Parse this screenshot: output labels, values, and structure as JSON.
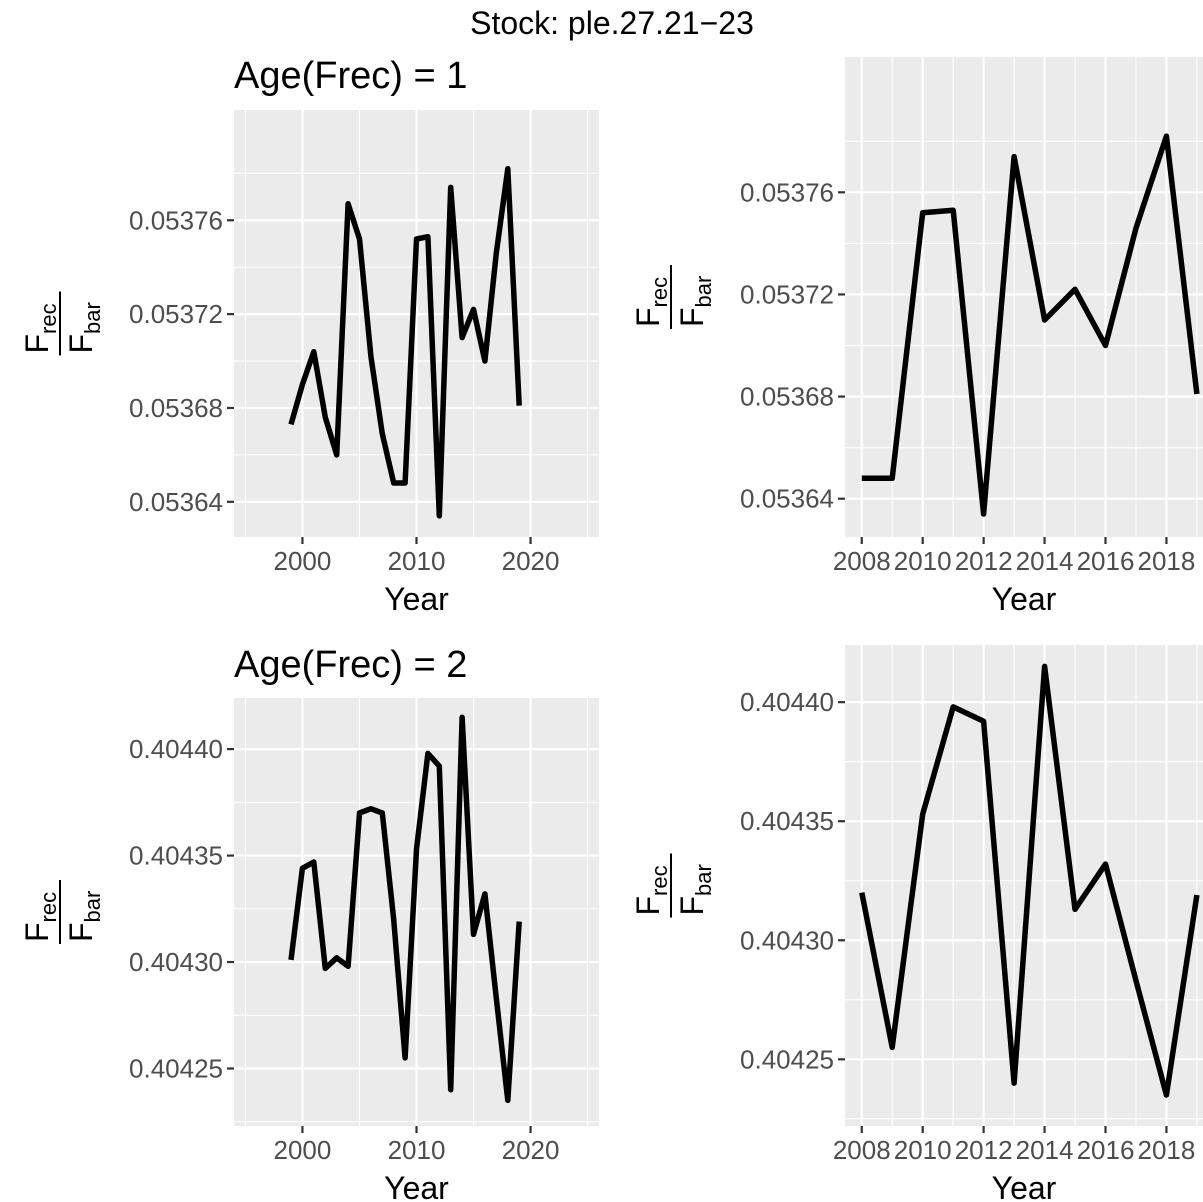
{
  "figure": {
    "title": "Stock: ple.27.21−23"
  },
  "chart_data": [
    {
      "type": "line",
      "title": "Age(Frec) = 1",
      "xlabel": "Year",
      "ylabel": {
        "num_main": "F",
        "num_sub": "rec",
        "den_main": "F",
        "den_sub": "bar"
      },
      "xlim": [
        1994,
        2026
      ],
      "ylim": [
        0.053625,
        0.053807
      ],
      "x_ticks": [
        2000,
        2010,
        2020
      ],
      "x_tick_labels": [
        "2000",
        "2010",
        "2020"
      ],
      "y_ticks": [
        0.05364,
        0.05368,
        0.05372,
        0.05376
      ],
      "y_tick_labels": [
        "0.05364",
        "0.05368",
        "0.05372",
        "0.05376"
      ],
      "grid": true,
      "x": [
        1999,
        2000,
        2001,
        2002,
        2003,
        2004,
        2005,
        2006,
        2007,
        2008,
        2009,
        2010,
        2011,
        2012,
        2013,
        2014,
        2015,
        2016,
        2017,
        2018,
        2019
      ],
      "y": [
        0.053673,
        0.05369,
        0.053704,
        0.053676,
        0.05366,
        0.053767,
        0.053752,
        0.053702,
        0.053669,
        0.053648,
        0.053648,
        0.053752,
        0.053753,
        0.053634,
        0.053774,
        0.05371,
        0.053722,
        0.0537,
        0.053746,
        0.053782,
        0.053681
      ]
    },
    {
      "type": "line",
      "title": "",
      "xlabel": "Year",
      "ylabel": {
        "num_main": "F",
        "num_sub": "rec",
        "den_main": "F",
        "den_sub": "bar"
      },
      "xlim": [
        2007.45,
        2019.2
      ],
      "ylim": [
        0.053625,
        0.053813
      ],
      "x_ticks": [
        2008,
        2010,
        2012,
        2014,
        2016,
        2018
      ],
      "x_tick_labels": [
        "2008",
        "2010",
        "2012",
        "2014",
        "2016",
        "2018"
      ],
      "y_ticks": [
        0.05364,
        0.05368,
        0.05372,
        0.05376
      ],
      "y_tick_labels": [
        "0.05364",
        "0.05368",
        "0.05372",
        "0.05376"
      ],
      "grid": true,
      "x": [
        2008,
        2009,
        2010,
        2011,
        2012,
        2013,
        2014,
        2015,
        2016,
        2017,
        2018,
        2019
      ],
      "y": [
        0.053648,
        0.053648,
        0.053752,
        0.053753,
        0.053634,
        0.053774,
        0.05371,
        0.053722,
        0.0537,
        0.053746,
        0.053782,
        0.053681
      ]
    },
    {
      "type": "line",
      "title": "Age(Frec) = 2",
      "xlabel": "Year",
      "ylabel": {
        "num_main": "F",
        "num_sub": "rec",
        "den_main": "F",
        "den_sub": "bar"
      },
      "xlim": [
        1994,
        2026
      ],
      "ylim": [
        0.404223,
        0.404424
      ],
      "x_ticks": [
        2000,
        2010,
        2020
      ],
      "x_tick_labels": [
        "2000",
        "2010",
        "2020"
      ],
      "y_ticks": [
        0.40425,
        0.4043,
        0.40435,
        0.4044
      ],
      "y_tick_labels": [
        "0.40425",
        "0.40430",
        "0.40435",
        "0.40440"
      ],
      "grid": true,
      "x": [
        1999,
        2000,
        2001,
        2002,
        2003,
        2004,
        2005,
        2006,
        2007,
        2008,
        2009,
        2010,
        2011,
        2012,
        2013,
        2014,
        2015,
        2016,
        2017,
        2018,
        2019
      ],
      "y": [
        0.404301,
        0.404344,
        0.404347,
        0.404297,
        0.404302,
        0.404298,
        0.40437,
        0.404372,
        0.40437,
        0.40432,
        0.404255,
        0.404353,
        0.404398,
        0.404392,
        0.40424,
        0.404415,
        0.404313,
        0.404332,
        0.404283,
        0.404235,
        0.404319
      ]
    },
    {
      "type": "line",
      "title": "",
      "xlabel": "Year",
      "ylabel": {
        "num_main": "F",
        "num_sub": "rec",
        "den_main": "F",
        "den_sub": "bar"
      },
      "xlim": [
        2007.45,
        2019.2
      ],
      "ylim": [
        0.404222,
        0.404424
      ],
      "x_ticks": [
        2008,
        2010,
        2012,
        2014,
        2016,
        2018
      ],
      "x_tick_labels": [
        "2008",
        "2010",
        "2012",
        "2014",
        "2016",
        "2018"
      ],
      "y_ticks": [
        0.40425,
        0.4043,
        0.40435,
        0.4044
      ],
      "y_tick_labels": [
        "0.40425",
        "0.40430",
        "0.40435",
        "0.40440"
      ],
      "grid": true,
      "x": [
        2008,
        2009,
        2010,
        2011,
        2012,
        2013,
        2014,
        2015,
        2016,
        2017,
        2018,
        2019
      ],
      "y": [
        0.40432,
        0.404255,
        0.404353,
        0.404398,
        0.404392,
        0.40424,
        0.404415,
        0.404313,
        0.404332,
        0.404283,
        0.404235,
        0.404319
      ]
    }
  ]
}
